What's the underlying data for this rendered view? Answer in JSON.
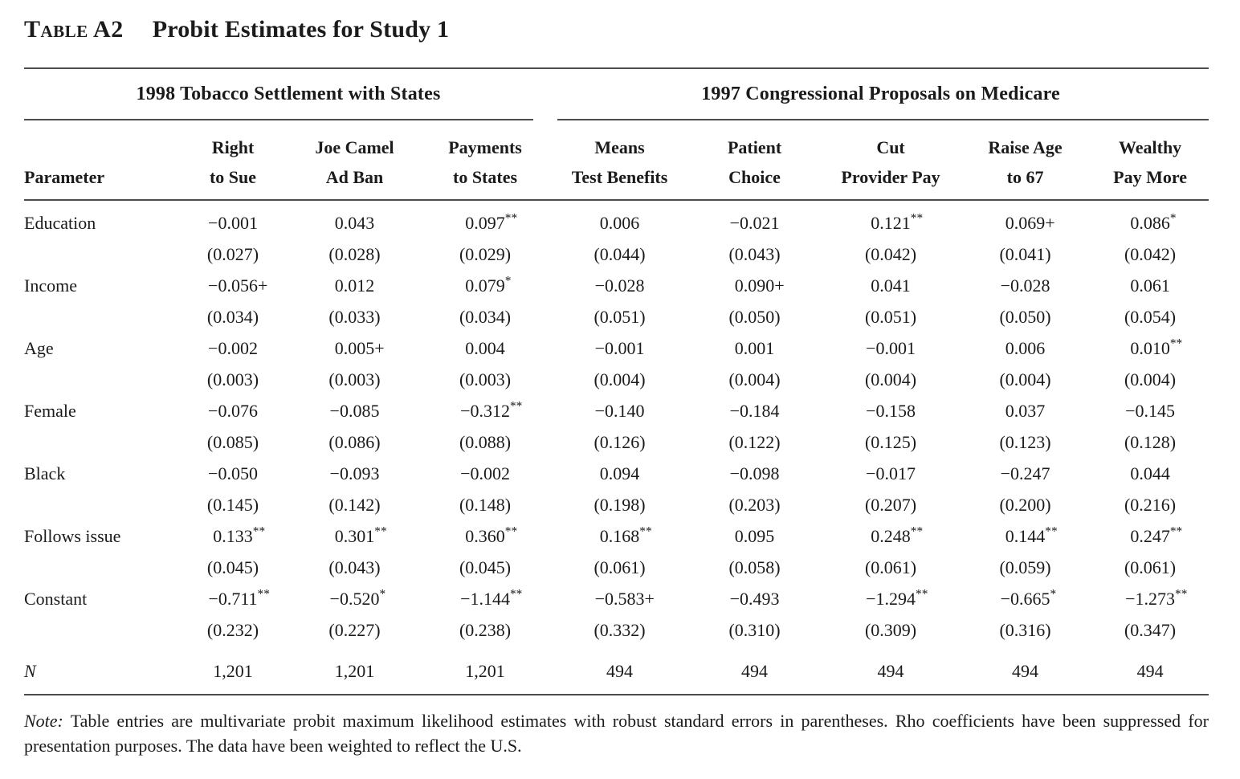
{
  "title": {
    "table_label": "Table A2",
    "table_title": "Probit Estimates for Study 1"
  },
  "groups": {
    "left": "1998 Tobacco Settlement with States",
    "right": "1997 Congressional Proposals on Medicare"
  },
  "header": {
    "parameter": "Parameter",
    "columns": [
      {
        "line1": "Right",
        "line2": "to Sue"
      },
      {
        "line1": "Joe Camel",
        "line2": "Ad Ban"
      },
      {
        "line1": "Payments",
        "line2": "to States"
      },
      {
        "line1": "Means",
        "line2": "Test Benefits"
      },
      {
        "line1": "Patient",
        "line2": "Choice"
      },
      {
        "line1": "Cut",
        "line2": "Provider Pay"
      },
      {
        "line1": "Raise Age",
        "line2": "to 67"
      },
      {
        "line1": "Wealthy",
        "line2": "Pay More"
      }
    ]
  },
  "rows": [
    {
      "label": "Education",
      "coefs": [
        "−0.001",
        "0.043",
        "0.097**",
        "0.006",
        "−0.021",
        "0.121**",
        "0.069+",
        "0.086*"
      ],
      "ses": [
        "(0.027)",
        "(0.028)",
        "(0.029)",
        "(0.044)",
        "(0.043)",
        "(0.042)",
        "(0.041)",
        "(0.042)"
      ]
    },
    {
      "label": "Income",
      "coefs": [
        "−0.056+",
        "0.012",
        "0.079*",
        "−0.028",
        "0.090+",
        "0.041",
        "−0.028",
        "0.061"
      ],
      "ses": [
        "(0.034)",
        "(0.033)",
        "(0.034)",
        "(0.051)",
        "(0.050)",
        "(0.051)",
        "(0.050)",
        "(0.054)"
      ]
    },
    {
      "label": "Age",
      "coefs": [
        "−0.002",
        "0.005+",
        "0.004",
        "−0.001",
        "0.001",
        "−0.001",
        "0.006",
        "0.010**"
      ],
      "ses": [
        "(0.003)",
        "(0.003)",
        "(0.003)",
        "(0.004)",
        "(0.004)",
        "(0.004)",
        "(0.004)",
        "(0.004)"
      ]
    },
    {
      "label": "Female",
      "coefs": [
        "−0.076",
        "−0.085",
        "−0.312**",
        "−0.140",
        "−0.184",
        "−0.158",
        "0.037",
        "−0.145"
      ],
      "ses": [
        "(0.085)",
        "(0.086)",
        "(0.088)",
        "(0.126)",
        "(0.122)",
        "(0.125)",
        "(0.123)",
        "(0.128)"
      ]
    },
    {
      "label": "Black",
      "coefs": [
        "−0.050",
        "−0.093",
        "−0.002",
        "0.094",
        "−0.098",
        "−0.017",
        "−0.247",
        "0.044"
      ],
      "ses": [
        "(0.145)",
        "(0.142)",
        "(0.148)",
        "(0.198)",
        "(0.203)",
        "(0.207)",
        "(0.200)",
        "(0.216)"
      ]
    },
    {
      "label": "Follows issue",
      "coefs": [
        "0.133**",
        "0.301**",
        "0.360**",
        "0.168**",
        "0.095",
        "0.248**",
        "0.144**",
        "0.247**"
      ],
      "ses": [
        "(0.045)",
        "(0.043)",
        "(0.045)",
        "(0.061)",
        "(0.058)",
        "(0.061)",
        "(0.059)",
        "(0.061)"
      ]
    },
    {
      "label": "Constant",
      "coefs": [
        "−0.711**",
        "−0.520*",
        "−1.144**",
        "−0.583+",
        "−0.493",
        "−1.294**",
        "−0.665*",
        "−1.273**"
      ],
      "ses": [
        "(0.232)",
        "(0.227)",
        "(0.238)",
        "(0.332)",
        "(0.310)",
        "(0.309)",
        "(0.316)",
        "(0.347)"
      ]
    }
  ],
  "n_row": {
    "label": "N",
    "values": [
      "1,201",
      "1,201",
      "1,201",
      "494",
      "494",
      "494",
      "494",
      "494"
    ]
  },
  "note": {
    "label": "Note:",
    "text": " Table entries are multivariate probit maximum likelihood estimates with robust standard errors in parentheses. Rho coefficients have been suppressed for presentation purposes. The data have been weighted to reflect the U.S."
  },
  "colors": {
    "text": "#1b1b1b",
    "rule": "#4d4d4d",
    "background": "#ffffff"
  }
}
